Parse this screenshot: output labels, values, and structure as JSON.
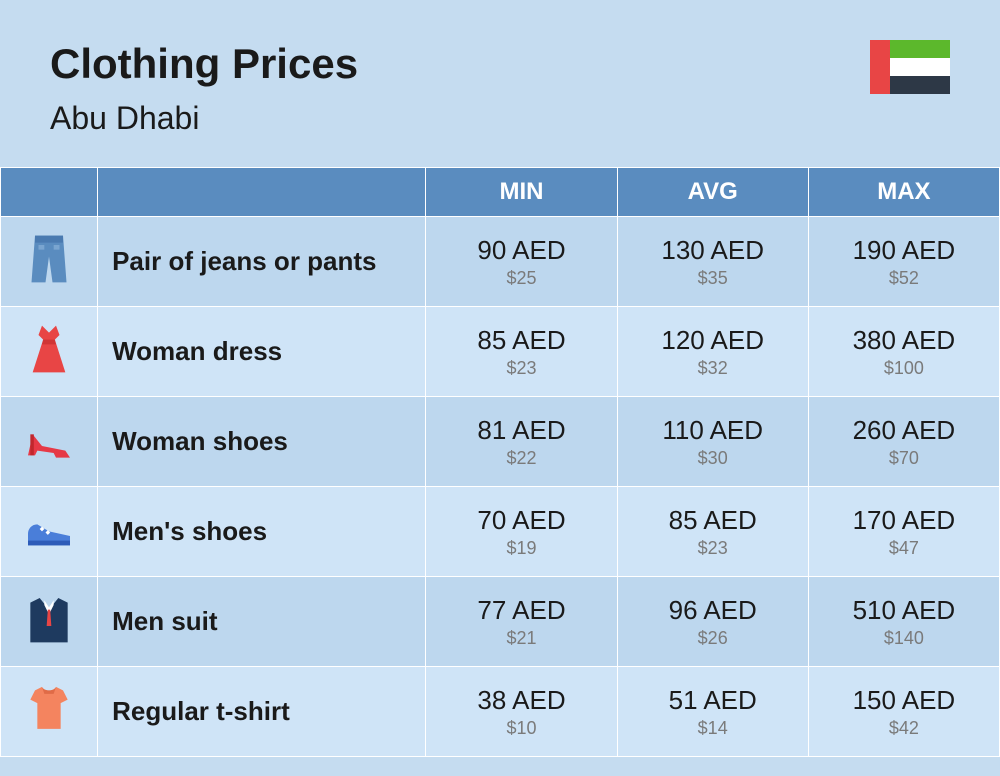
{
  "header": {
    "title": "Clothing Prices",
    "subtitle": "Abu Dhabi"
  },
  "flag": {
    "country": "UAE",
    "red": "#e84545",
    "green": "#5cb82c",
    "white": "#ffffff",
    "black": "#2d3846"
  },
  "table": {
    "columns": [
      "",
      "",
      "MIN",
      "AVG",
      "MAX"
    ],
    "colors": {
      "header_bg": "#5a8cbf",
      "header_text": "#ffffff",
      "row_odd_bg": "#bdd7ee",
      "row_even_bg": "#cfe4f7",
      "border": "#ffffff",
      "price_main": "#1a1a1a",
      "price_sub": "#7a7a7a"
    },
    "rows": [
      {
        "icon": "jeans",
        "label": "Pair of jeans or pants",
        "min": {
          "aed": "90 AED",
          "usd": "$25"
        },
        "avg": {
          "aed": "130 AED",
          "usd": "$35"
        },
        "max": {
          "aed": "190 AED",
          "usd": "$52"
        }
      },
      {
        "icon": "dress",
        "label": "Woman dress",
        "min": {
          "aed": "85 AED",
          "usd": "$23"
        },
        "avg": {
          "aed": "120 AED",
          "usd": "$32"
        },
        "max": {
          "aed": "380 AED",
          "usd": "$100"
        }
      },
      {
        "icon": "heel",
        "label": "Woman shoes",
        "min": {
          "aed": "81 AED",
          "usd": "$22"
        },
        "avg": {
          "aed": "110 AED",
          "usd": "$30"
        },
        "max": {
          "aed": "260 AED",
          "usd": "$70"
        }
      },
      {
        "icon": "sneaker",
        "label": "Men's shoes",
        "min": {
          "aed": "70 AED",
          "usd": "$19"
        },
        "avg": {
          "aed": "85 AED",
          "usd": "$23"
        },
        "max": {
          "aed": "170 AED",
          "usd": "$47"
        }
      },
      {
        "icon": "suit",
        "label": "Men suit",
        "min": {
          "aed": "77 AED",
          "usd": "$21"
        },
        "avg": {
          "aed": "96 AED",
          "usd": "$26"
        },
        "max": {
          "aed": "510 AED",
          "usd": "$140"
        }
      },
      {
        "icon": "tshirt",
        "label": "Regular t-shirt",
        "min": {
          "aed": "38 AED",
          "usd": "$10"
        },
        "avg": {
          "aed": "51 AED",
          "usd": "$14"
        },
        "max": {
          "aed": "150 AED",
          "usd": "$42"
        }
      }
    ]
  }
}
